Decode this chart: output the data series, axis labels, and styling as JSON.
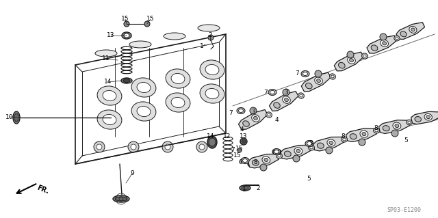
{
  "bg_color": "#ffffff",
  "watermark": "SP03-E1200",
  "line_color": "#1a1a1a",
  "gray_fill": "#c8c8c8",
  "dark_fill": "#555555"
}
